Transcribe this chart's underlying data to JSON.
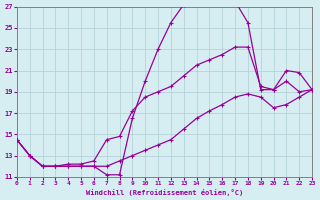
{
  "xlabel": "Windchill (Refroidissement éolien,°C)",
  "bg_color": "#d6eef2",
  "grid_color": "#b0cdd6",
  "line_color": "#990099",
  "xlim": [
    0,
    23
  ],
  "ylim": [
    11,
    27
  ],
  "xticks": [
    0,
    1,
    2,
    3,
    4,
    5,
    6,
    7,
    8,
    9,
    10,
    11,
    12,
    13,
    14,
    15,
    16,
    17,
    18,
    19,
    20,
    21,
    22,
    23
  ],
  "yticks": [
    11,
    13,
    15,
    17,
    19,
    21,
    23,
    25,
    27
  ],
  "series1_x": [
    0,
    1,
    2,
    3,
    4,
    5,
    6,
    7,
    8,
    9,
    10,
    11,
    12,
    13,
    14,
    15,
    16,
    17,
    18,
    19,
    20,
    21,
    22,
    23
  ],
  "series1_y": [
    14.5,
    13.0,
    12.0,
    12.0,
    12.0,
    12.0,
    12.0,
    11.2,
    11.2,
    16.5,
    20.0,
    23.0,
    25.5,
    27.2,
    28.0,
    28.2,
    28.2,
    27.5,
    25.5,
    19.2,
    19.2,
    20.0,
    19.0,
    19.2
  ],
  "series2_x": [
    0,
    1,
    2,
    3,
    4,
    5,
    6,
    7,
    8,
    9,
    10,
    11,
    12,
    13,
    14,
    15,
    16,
    17,
    18,
    19,
    20,
    21,
    22,
    23
  ],
  "series2_y": [
    14.5,
    13.0,
    12.0,
    12.0,
    12.2,
    12.2,
    12.5,
    14.5,
    14.8,
    17.2,
    18.5,
    19.0,
    19.5,
    20.5,
    21.5,
    22.0,
    22.5,
    23.2,
    23.2,
    19.5,
    19.2,
    21.0,
    20.8,
    19.2
  ],
  "series3_x": [
    0,
    1,
    2,
    3,
    4,
    5,
    6,
    7,
    8,
    9,
    10,
    11,
    12,
    13,
    14,
    15,
    16,
    17,
    18,
    19,
    20,
    21,
    22,
    23
  ],
  "series3_y": [
    14.5,
    13.0,
    12.0,
    12.0,
    12.0,
    12.0,
    12.0,
    12.0,
    12.5,
    13.0,
    13.5,
    14.0,
    14.5,
    15.5,
    16.5,
    17.2,
    17.8,
    18.5,
    18.8,
    18.5,
    17.5,
    17.8,
    18.5,
    19.2
  ]
}
